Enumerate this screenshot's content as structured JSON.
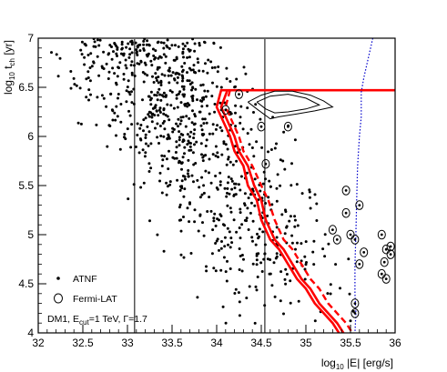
{
  "chart_data": {
    "type": "scatter",
    "xlim": [
      32,
      36
    ],
    "ylim": [
      4,
      7
    ],
    "x_ticks": [
      "32",
      "32.5",
      "33",
      "33.5",
      "34",
      "34.5",
      "35",
      "35.5",
      "36"
    ],
    "y_ticks": [
      "4",
      "4.5",
      "5",
      "5.5",
      "6",
      "6.5",
      "7"
    ],
    "xlabel": {
      "prefix": "log",
      "sub": "10",
      "rest": " |E| [erg/s]"
    },
    "ylabel": {
      "prefix": "log",
      "sub": "10",
      "mid": " t",
      "sub2": "ch",
      "rest": " [yr]"
    },
    "legend": {
      "atnf": "ATNF",
      "fermi": "Fermi-LAT",
      "note_prefix": "DM1, E",
      "note_sub": "cut",
      "note_rest": "=1 TeV, Γ=1.7"
    },
    "vertical_lines_x": [
      33.08,
      34.54
    ],
    "colors": {
      "limit": "#ff0000",
      "contour": "#000000",
      "blue_limit": "#0000cc",
      "points": "#000000"
    },
    "series": [
      {
        "type": "line",
        "style": "solid",
        "x": [
          36,
          34.05,
          34.0,
          34.05,
          34.15,
          34.2,
          34.3,
          34.35,
          34.45,
          34.5,
          34.6,
          34.7,
          34.8,
          34.9,
          35.0,
          35.1,
          35.2,
          35.3,
          35.37
        ],
        "y": [
          6.47,
          6.47,
          6.3,
          6.2,
          6.0,
          5.85,
          5.7,
          5.5,
          5.35,
          5.15,
          4.95,
          4.85,
          4.7,
          4.55,
          4.45,
          4.3,
          4.2,
          4.1,
          4.0
        ]
      },
      {
        "type": "line",
        "style": "solid",
        "x": [
          34.12,
          34.05,
          34.1,
          34.2,
          34.25,
          34.35,
          34.42,
          34.5,
          34.55,
          34.65,
          34.75,
          34.85,
          34.95,
          35.05,
          35.15,
          35.25,
          35.35,
          35.42
        ],
        "y": [
          6.47,
          6.3,
          6.2,
          6.0,
          5.85,
          5.7,
          5.5,
          5.35,
          5.15,
          4.95,
          4.85,
          4.7,
          4.55,
          4.45,
          4.3,
          4.2,
          4.1,
          4.0
        ]
      },
      {
        "type": "line",
        "style": "dashed",
        "x": [
          34.15,
          34.1,
          34.15,
          34.25,
          34.3,
          34.4,
          34.5,
          34.58,
          34.65,
          34.75,
          34.85,
          34.95,
          35.05,
          35.15,
          35.25,
          35.35,
          35.45,
          35.52
        ],
        "y": [
          6.47,
          6.3,
          6.2,
          6.0,
          5.85,
          5.7,
          5.5,
          5.35,
          5.15,
          4.95,
          4.85,
          4.7,
          4.55,
          4.45,
          4.3,
          4.2,
          4.1,
          4.0
        ]
      },
      {
        "type": "line",
        "style": "dotted",
        "x": [
          35.75,
          35.7,
          35.65,
          35.62,
          35.62,
          35.6,
          35.58,
          35.57,
          35.56,
          35.55,
          35.55,
          35.56,
          35.55
        ],
        "y": [
          7.0,
          6.8,
          6.6,
          6.45,
          6.2,
          6.0,
          5.7,
          5.4,
          5.0,
          4.7,
          4.4,
          4.2,
          4.0
        ]
      },
      {
        "type": "contour",
        "x": [
          34.35,
          34.5,
          34.65,
          34.85,
          35.05,
          35.2,
          35.3,
          35.1,
          34.9,
          34.7,
          34.6,
          34.45,
          34.35
        ],
        "y": [
          6.35,
          6.42,
          6.46,
          6.46,
          6.42,
          6.36,
          6.3,
          6.26,
          6.23,
          6.2,
          6.18,
          6.28,
          6.35
        ]
      },
      {
        "type": "contour",
        "x": [
          34.45,
          34.6,
          34.8,
          35.0,
          35.15,
          35.0,
          34.8,
          34.65,
          34.55,
          34.45
        ],
        "y": [
          6.35,
          6.41,
          6.43,
          6.39,
          6.32,
          6.28,
          6.25,
          6.24,
          6.28,
          6.35
        ]
      },
      {
        "type": "fermi",
        "x": [
          34.1,
          34.5,
          34.55,
          34.8,
          35.45,
          35.45,
          35.3,
          35.5,
          35.55,
          35.65,
          35.6,
          35.85,
          35.9,
          35.95,
          35.95,
          35.88,
          35.9,
          35.55,
          35.55,
          34.25,
          35.35,
          35.6,
          35.85
        ],
        "y": [
          6.27,
          6.1,
          5.72,
          6.1,
          5.45,
          5.22,
          5.05,
          5.0,
          4.95,
          4.82,
          4.7,
          5.0,
          4.85,
          4.8,
          4.88,
          4.72,
          4.55,
          4.3,
          4.2,
          6.43,
          4.95,
          5.3,
          4.6
        ]
      }
    ]
  }
}
